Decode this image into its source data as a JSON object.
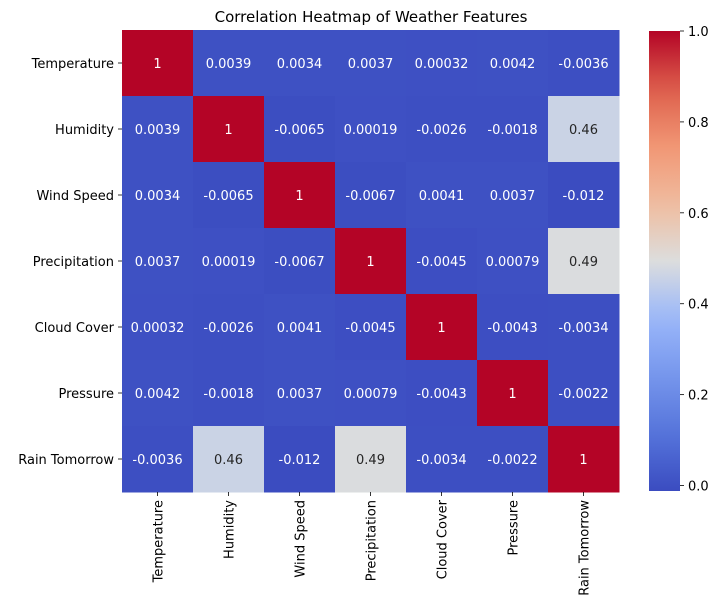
{
  "chart_data": {
    "type": "heatmap",
    "title": "Correlation Heatmap of Weather Features",
    "rows": [
      "Temperature",
      "Humidity",
      "Wind Speed",
      "Precipitation",
      "Cloud Cover",
      "Pressure",
      "Rain Tomorrow"
    ],
    "columns": [
      "Temperature",
      "Humidity",
      "Wind Speed",
      "Precipitation",
      "Cloud Cover",
      "Pressure",
      "Rain Tomorrow"
    ],
    "values": [
      [
        1,
        0.0039,
        0.0034,
        0.0037,
        0.00032,
        0.0042,
        -0.0036
      ],
      [
        0.0039,
        1,
        -0.0065,
        0.00019,
        -0.0026,
        -0.0018,
        0.46
      ],
      [
        0.0034,
        -0.0065,
        1,
        -0.0067,
        0.0041,
        0.0037,
        -0.012
      ],
      [
        0.0037,
        0.00019,
        -0.0067,
        1,
        -0.0045,
        0.00079,
        0.49
      ],
      [
        0.00032,
        -0.0026,
        0.0041,
        -0.0045,
        1,
        -0.0043,
        -0.0034
      ],
      [
        0.0042,
        -0.0018,
        0.0037,
        0.00079,
        -0.0043,
        1,
        -0.0022
      ],
      [
        -0.0036,
        0.46,
        -0.012,
        0.49,
        -0.0034,
        -0.0022,
        1
      ]
    ],
    "cell_labels": [
      [
        "1",
        "0.0039",
        "0.0034",
        "0.0037",
        "0.00032",
        "0.0042",
        "-0.0036"
      ],
      [
        "0.0039",
        "1",
        "-0.0065",
        "0.00019",
        "-0.0026",
        "-0.0018",
        "0.46"
      ],
      [
        "0.0034",
        "-0.0065",
        "1",
        "-0.0067",
        "0.0041",
        "0.0037",
        "-0.012"
      ],
      [
        "0.0037",
        "0.00019",
        "-0.0067",
        "1",
        "-0.0045",
        "0.00079",
        "0.49"
      ],
      [
        "0.00032",
        "-0.0026",
        "0.0041",
        "-0.0045",
        "1",
        "-0.0043",
        "-0.0034"
      ],
      [
        "0.0042",
        "-0.0018",
        "0.0037",
        "0.00079",
        "-0.0043",
        "1",
        "-0.0022"
      ],
      [
        "-0.0036",
        "0.46",
        "-0.012",
        "0.49",
        "-0.0034",
        "-0.0022",
        "1"
      ]
    ],
    "colormap": "coolwarm",
    "color_range": [
      -0.012,
      1
    ],
    "colorbar": {
      "ticks": [
        0.0,
        0.2,
        0.4,
        0.6,
        0.8,
        1.0
      ],
      "tick_labels": [
        "0.0",
        "0.2",
        "0.4",
        "0.6",
        "0.8",
        "1.0"
      ],
      "placement": "right"
    }
  }
}
